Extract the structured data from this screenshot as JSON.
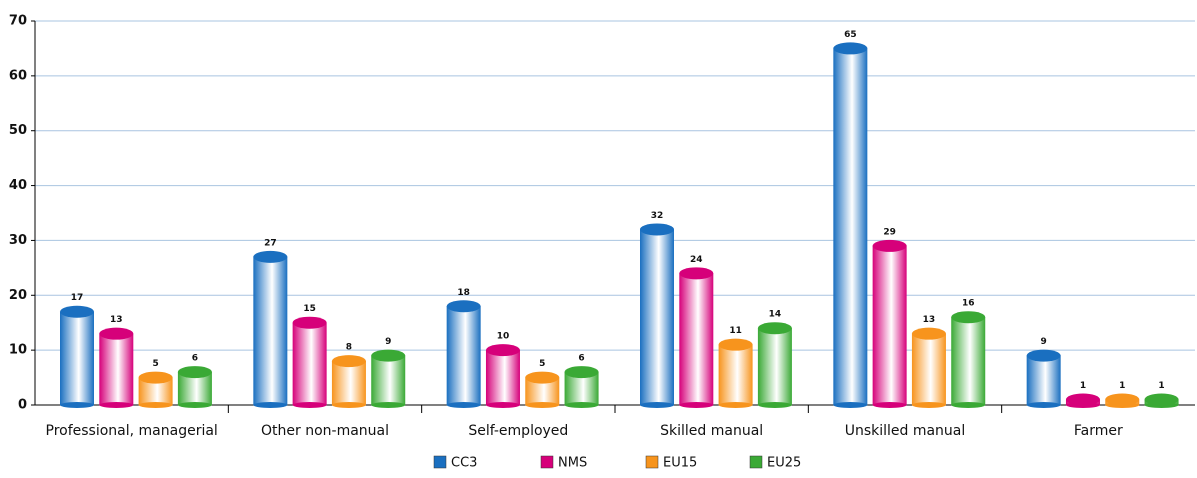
{
  "chart_data": {
    "type": "bar",
    "categories": [
      "Professional, managerial",
      "Other non-manual",
      "Self-employed",
      "Skilled manual",
      "Unskilled manual",
      "Farmer"
    ],
    "series": [
      {
        "name": "CC3",
        "color": "#1a6fc0",
        "values": [
          17,
          27,
          18,
          32,
          65,
          9
        ]
      },
      {
        "name": "NMS",
        "color": "#d6007a",
        "values": [
          13,
          15,
          10,
          24,
          29,
          1
        ]
      },
      {
        "name": "EU15",
        "color": "#f7941d",
        "values": [
          5,
          8,
          5,
          11,
          13,
          1
        ]
      },
      {
        "name": "EU25",
        "color": "#3aa935",
        "values": [
          6,
          9,
          6,
          14,
          16,
          1
        ]
      }
    ],
    "ylim": [
      0,
      70
    ],
    "yticks": [
      0,
      10,
      20,
      30,
      40,
      50,
      60,
      70
    ],
    "grid": true,
    "legend": "bottom"
  }
}
